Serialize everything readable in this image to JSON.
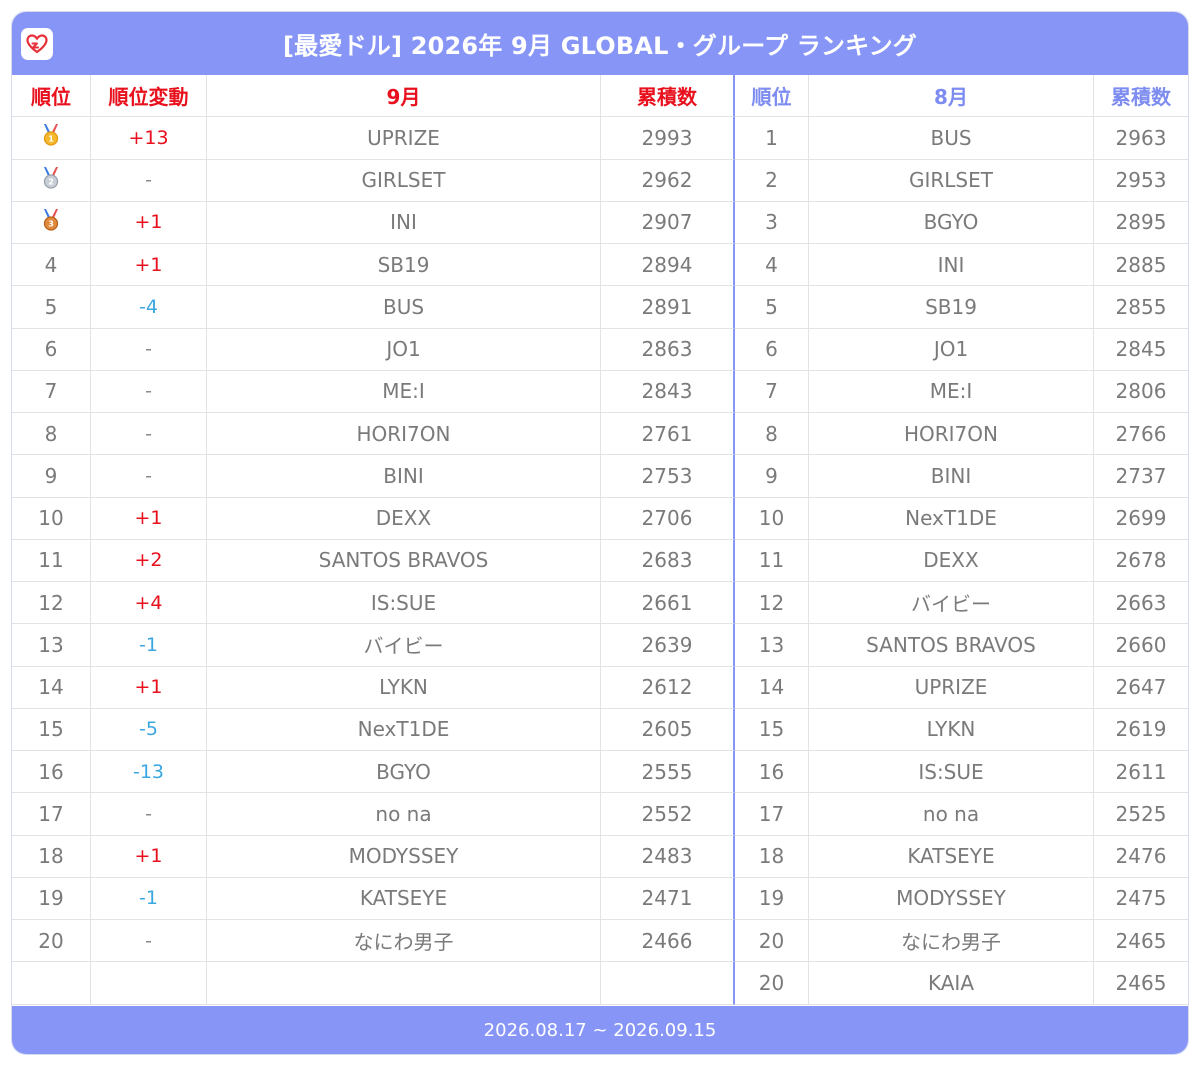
{
  "header": {
    "title": "[最愛ドル] 2026年 9月 GLOBAL・グループ ランキング",
    "logo_icon": "heart-icon"
  },
  "columns": {
    "rank": "順位",
    "change": "順位変動",
    "current_month": "9月",
    "current_points": "累積数",
    "prev_rank": "順位",
    "prev_month": "8月",
    "prev_points": "累積数"
  },
  "colors": {
    "accent": "#8795f7",
    "up": "#e8101c",
    "down": "#3aa7e0"
  },
  "current_rows": [
    {
      "rank": "1",
      "medal": "gold",
      "change": "+13",
      "dir": "up",
      "name": "UPRIZE",
      "points": "2993"
    },
    {
      "rank": "2",
      "medal": "silver",
      "change": "-",
      "dir": "same",
      "name": "GIRLSET",
      "points": "2962"
    },
    {
      "rank": "3",
      "medal": "bronze",
      "change": "+1",
      "dir": "up",
      "name": "INI",
      "points": "2907"
    },
    {
      "rank": "4",
      "change": "+1",
      "dir": "up",
      "name": "SB19",
      "points": "2894"
    },
    {
      "rank": "5",
      "change": "-4",
      "dir": "down",
      "name": "BUS",
      "points": "2891"
    },
    {
      "rank": "6",
      "change": "-",
      "dir": "same",
      "name": "JO1",
      "points": "2863"
    },
    {
      "rank": "7",
      "change": "-",
      "dir": "same",
      "name": "ME:I",
      "points": "2843"
    },
    {
      "rank": "8",
      "change": "-",
      "dir": "same",
      "name": "HORI7ON",
      "points": "2761"
    },
    {
      "rank": "9",
      "change": "-",
      "dir": "same",
      "name": "BINI",
      "points": "2753"
    },
    {
      "rank": "10",
      "change": "+1",
      "dir": "up",
      "name": "DEXX",
      "points": "2706"
    },
    {
      "rank": "11",
      "change": "+2",
      "dir": "up",
      "name": "SANTOS BRAVOS",
      "points": "2683"
    },
    {
      "rank": "12",
      "change": "+4",
      "dir": "up",
      "name": "IS:SUE",
      "points": "2661"
    },
    {
      "rank": "13",
      "change": "-1",
      "dir": "down",
      "name": "バイビー",
      "points": "2639"
    },
    {
      "rank": "14",
      "change": "+1",
      "dir": "up",
      "name": "LYKN",
      "points": "2612"
    },
    {
      "rank": "15",
      "change": "-5",
      "dir": "down",
      "name": "NexT1DE",
      "points": "2605"
    },
    {
      "rank": "16",
      "change": "-13",
      "dir": "down",
      "name": "BGYO",
      "points": "2555"
    },
    {
      "rank": "17",
      "change": "-",
      "dir": "same",
      "name": "no na",
      "points": "2552"
    },
    {
      "rank": "18",
      "change": "+1",
      "dir": "up",
      "name": "MODYSSEY",
      "points": "2483"
    },
    {
      "rank": "19",
      "change": "-1",
      "dir": "down",
      "name": "KATSEYE",
      "points": "2471"
    },
    {
      "rank": "20",
      "change": "-",
      "dir": "same",
      "name": "なにわ男子",
      "points": "2466"
    },
    {
      "rank": "",
      "change": "",
      "dir": "same",
      "name": "",
      "points": ""
    }
  ],
  "previous_rows": [
    {
      "rank": "1",
      "name": "BUS",
      "points": "2963"
    },
    {
      "rank": "2",
      "name": "GIRLSET",
      "points": "2953"
    },
    {
      "rank": "3",
      "name": "BGYO",
      "points": "2895"
    },
    {
      "rank": "4",
      "name": "INI",
      "points": "2885"
    },
    {
      "rank": "5",
      "name": "SB19",
      "points": "2855"
    },
    {
      "rank": "6",
      "name": "JO1",
      "points": "2845"
    },
    {
      "rank": "7",
      "name": "ME:I",
      "points": "2806"
    },
    {
      "rank": "8",
      "name": "HORI7ON",
      "points": "2766"
    },
    {
      "rank": "9",
      "name": "BINI",
      "points": "2737"
    },
    {
      "rank": "10",
      "name": "NexT1DE",
      "points": "2699"
    },
    {
      "rank": "11",
      "name": "DEXX",
      "points": "2678"
    },
    {
      "rank": "12",
      "name": "バイビー",
      "points": "2663"
    },
    {
      "rank": "13",
      "name": "SANTOS BRAVOS",
      "points": "2660"
    },
    {
      "rank": "14",
      "name": "UPRIZE",
      "points": "2647"
    },
    {
      "rank": "15",
      "name": "LYKN",
      "points": "2619"
    },
    {
      "rank": "16",
      "name": "IS:SUE",
      "points": "2611"
    },
    {
      "rank": "17",
      "name": "no na",
      "points": "2525"
    },
    {
      "rank": "18",
      "name": "KATSEYE",
      "points": "2476"
    },
    {
      "rank": "19",
      "name": "MODYSSEY",
      "points": "2475"
    },
    {
      "rank": "20",
      "name": "なにわ男子",
      "points": "2465"
    },
    {
      "rank": "20",
      "name": "KAIA",
      "points": "2465"
    }
  ],
  "footer": {
    "period": "2026.08.17 ~ 2026.09.15"
  }
}
